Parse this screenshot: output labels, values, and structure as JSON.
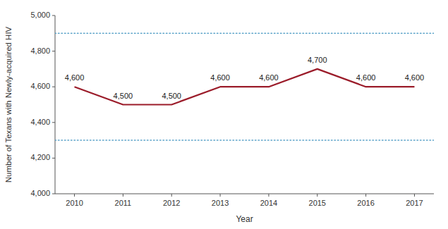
{
  "chart_data": {
    "type": "line",
    "x": [
      2010,
      2011,
      2012,
      2013,
      2014,
      2015,
      2016,
      2017
    ],
    "values": [
      4600,
      4500,
      4500,
      4600,
      4600,
      4700,
      4600,
      4600
    ],
    "value_labels": [
      "4,600",
      "4,500",
      "4,500",
      "4,600",
      "4,600",
      "4,700",
      "4,600",
      "4,600"
    ],
    "data_labels": true,
    "color": "#9B1C2A",
    "reference_lines": [
      {
        "value": 4900,
        "color": "#5BA3C9",
        "line_style": "dotted"
      },
      {
        "value": 4300,
        "color": "#5BA3C9",
        "line_style": "dotted"
      }
    ],
    "xlabel": "Year",
    "ylabel": "Number of Texans with Newly-acquired HIV",
    "xlim": [
      2009.6,
      2017.4
    ],
    "xticks": [
      2010,
      2011,
      2012,
      2013,
      2014,
      2015,
      2016,
      2017
    ],
    "ylim": [
      4000,
      5000
    ],
    "yticks": [
      {
        "value": 4000,
        "label": "4,000"
      },
      {
        "value": 4200,
        "label": "4,200"
      },
      {
        "value": 4400,
        "label": "4,400"
      },
      {
        "value": 4600,
        "label": "4,600"
      },
      {
        "value": 4800,
        "label": "4,800"
      },
      {
        "value": 5000,
        "label": "5,000"
      }
    ],
    "grid": false
  }
}
